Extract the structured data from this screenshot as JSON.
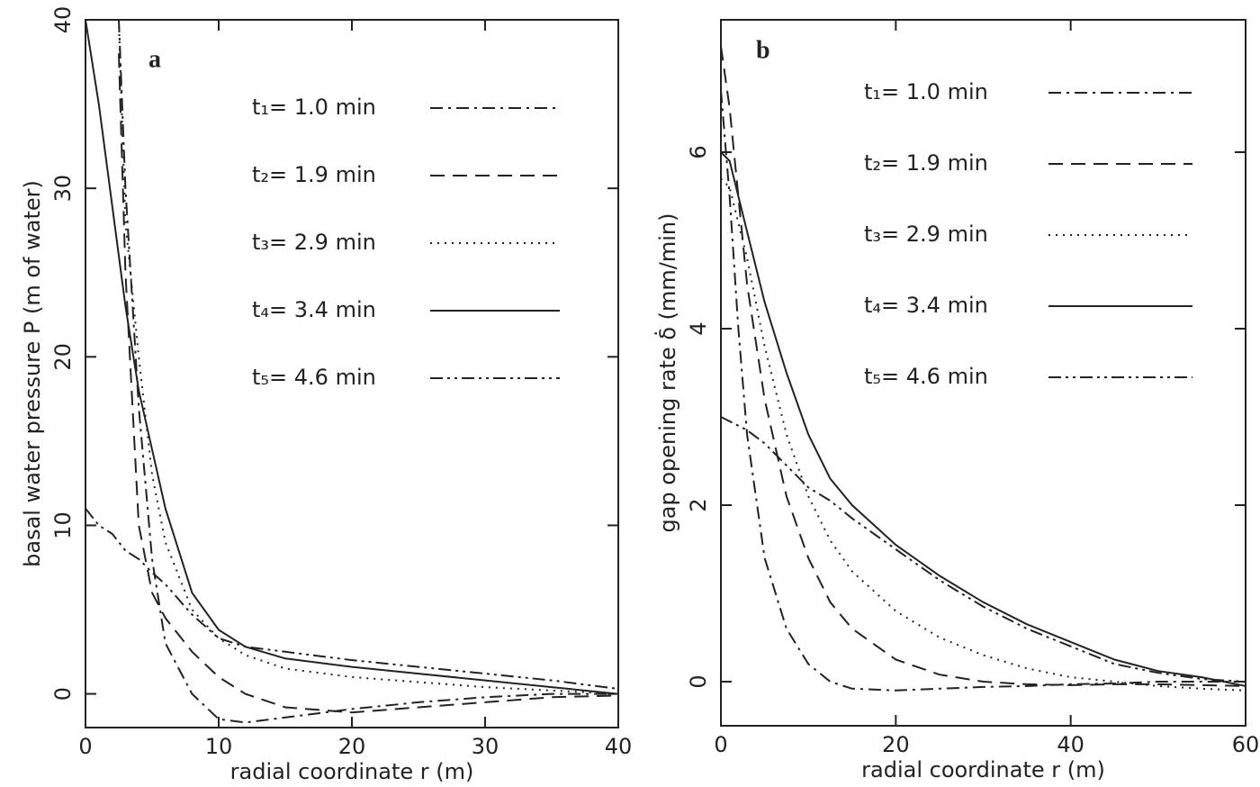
{
  "chart_data": [
    {
      "type": "line",
      "panel_label": "a",
      "xlabel": "radial coordinate r (m)",
      "ylabel": "basal water pressure P (m of water)",
      "xlim": [
        0,
        40
      ],
      "ylim": [
        -2,
        40
      ],
      "xticks": [
        0,
        10,
        20,
        30,
        40
      ],
      "yticks": [
        0,
        10,
        20,
        30,
        40
      ],
      "x": [
        0,
        1,
        2,
        2.5,
        3,
        4,
        5,
        6,
        8,
        10,
        12,
        15,
        20,
        25,
        30,
        35,
        40
      ],
      "series": [
        {
          "name": "t₁= 1.0 min",
          "color": "#222",
          "line_style": "dashdot",
          "values": [
            null,
            null,
            null,
            40,
            30,
            17,
            8,
            3,
            0,
            -1.5,
            -1.7,
            -1.4,
            -0.9,
            -0.5,
            -0.2,
            0,
            0
          ]
        },
        {
          "name": "t₂= 1.9 min",
          "color": "#222",
          "line_style": "dashed",
          "values": [
            null,
            null,
            null,
            38,
            25,
            10,
            6,
            4.5,
            2.5,
            1,
            0,
            -0.8,
            -1.1,
            -0.8,
            -0.5,
            -0.2,
            -0.1
          ]
        },
        {
          "name": "t₃= 2.9 min",
          "color": "#222",
          "line_style": "dotted",
          "values": [
            null,
            null,
            null,
            40,
            28,
            20,
            13,
            9,
            5,
            3.3,
            2.3,
            1.5,
            1,
            0.7,
            0.4,
            0.2,
            0
          ]
        },
        {
          "name": "t₄= 3.4 min",
          "color": "#222",
          "line_style": "solid",
          "values": [
            40,
            35,
            29,
            26,
            23,
            18,
            14.5,
            11,
            6,
            3.8,
            2.8,
            2.1,
            1.6,
            1.2,
            0.8,
            0.4,
            0
          ]
        },
        {
          "name": "t₅= 4.6 min",
          "color": "#222",
          "line_style": "dashdotdot",
          "values": [
            11,
            10,
            9.5,
            9,
            8.5,
            8,
            7.2,
            6.5,
            4.7,
            3.3,
            2.8,
            2.5,
            2,
            1.6,
            1.2,
            0.8,
            0.3
          ]
        }
      ]
    },
    {
      "type": "line",
      "panel_label": "b",
      "xlabel": "radial coordinate r (m)",
      "ylabel": "gap opening rate δ̇ (mm/min)",
      "xlim": [
        0,
        60
      ],
      "ylim": [
        -0.5,
        7.5
      ],
      "xticks": [
        0,
        20,
        40,
        60
      ],
      "yticks": [
        0,
        2,
        4,
        6
      ],
      "x": [
        0,
        1,
        2,
        3,
        5,
        7.5,
        10,
        12.5,
        15,
        20,
        25,
        30,
        35,
        40,
        45,
        50,
        55,
        60
      ],
      "series": [
        {
          "name": "t₁= 1.0 min",
          "color": "#222",
          "line_style": "dashdot",
          "values": [
            6.7,
            5.5,
            4,
            2.8,
            1.4,
            0.6,
            0.2,
            0,
            -0.08,
            -0.1,
            -0.08,
            -0.06,
            -0.05,
            -0.03,
            -0.02,
            0,
            0,
            0
          ]
        },
        {
          "name": "t₂= 1.9 min",
          "color": "#222",
          "line_style": "dashed",
          "values": [
            7.2,
            6.5,
            5.5,
            4.5,
            3.2,
            2.1,
            1.4,
            0.9,
            0.6,
            0.25,
            0.08,
            0,
            -0.03,
            -0.04,
            -0.03,
            -0.03,
            -0.04,
            -0.05
          ]
        },
        {
          "name": "t₃= 2.9 min",
          "color": "#222",
          "line_style": "dotted",
          "values": [
            5.7,
            5.6,
            5.2,
            4.8,
            3.8,
            2.8,
            2.1,
            1.6,
            1.25,
            0.8,
            0.5,
            0.3,
            0.15,
            0.05,
            0,
            -0.05,
            -0.08,
            -0.1
          ]
        },
        {
          "name": "t₄= 3.4 min",
          "color": "#222",
          "line_style": "solid",
          "values": [
            6,
            5.9,
            5.5,
            5.1,
            4.3,
            3.5,
            2.8,
            2.3,
            2,
            1.55,
            1.2,
            0.9,
            0.65,
            0.45,
            0.25,
            0.12,
            0.05,
            -0.05
          ]
        },
        {
          "name": "t₅= 4.6 min",
          "color": "#222",
          "line_style": "dashdotdot",
          "values": [
            3,
            2.95,
            2.9,
            2.85,
            2.7,
            2.45,
            2.2,
            2.05,
            1.85,
            1.5,
            1.15,
            0.85,
            0.6,
            0.4,
            0.2,
            0.1,
            0.03,
            0
          ]
        }
      ]
    }
  ]
}
